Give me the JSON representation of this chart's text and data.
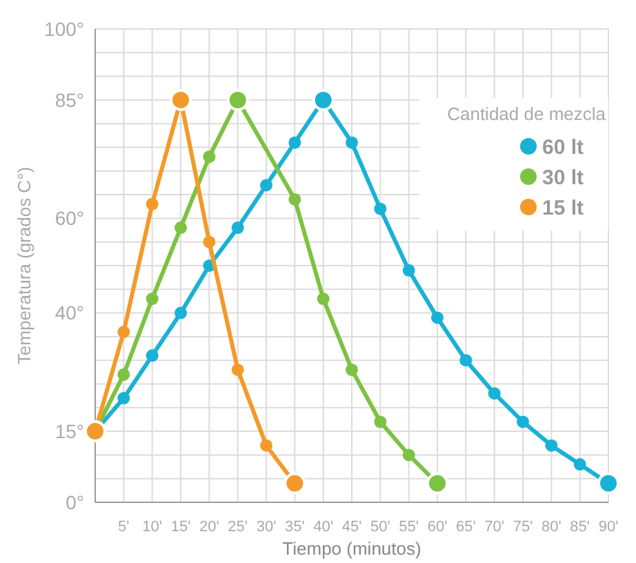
{
  "chart_data": {
    "type": "line",
    "xlabel": "Tiempo (minutos)",
    "ylabel": "Temperatura (grados C°)",
    "legend_title": "Cantidad de mezcla",
    "legend": "top right",
    "grid": true,
    "marker": "circle",
    "line_style": "solid",
    "xlim": [
      0,
      90
    ],
    "ylim": [
      0,
      100
    ],
    "xticks": [
      {
        "value": 0,
        "label": null
      },
      {
        "value": 5,
        "label": "5'"
      },
      {
        "value": 10,
        "label": "10'"
      },
      {
        "value": 15,
        "label": "15'"
      },
      {
        "value": 20,
        "label": "20'"
      },
      {
        "value": 25,
        "label": "25'"
      },
      {
        "value": 30,
        "label": "30'"
      },
      {
        "value": 35,
        "label": "35'"
      },
      {
        "value": 40,
        "label": "40'"
      },
      {
        "value": 45,
        "label": "45'"
      },
      {
        "value": 50,
        "label": "50'"
      },
      {
        "value": 55,
        "label": "55'"
      },
      {
        "value": 60,
        "label": "60'"
      },
      {
        "value": 65,
        "label": "65'"
      },
      {
        "value": 70,
        "label": "70'"
      },
      {
        "value": 75,
        "label": "75'"
      },
      {
        "value": 80,
        "label": "80'"
      },
      {
        "value": 85,
        "label": "85'"
      },
      {
        "value": 90,
        "label": "90'"
      }
    ],
    "yticks": [
      {
        "value": 0,
        "label": "0°"
      },
      {
        "value": 5,
        "label": null
      },
      {
        "value": 10,
        "label": null
      },
      {
        "value": 15,
        "label": "15°"
      },
      {
        "value": 20,
        "label": null
      },
      {
        "value": 25,
        "label": null
      },
      {
        "value": 30,
        "label": null
      },
      {
        "value": 35,
        "label": null
      },
      {
        "value": 40,
        "label": "40°"
      },
      {
        "value": 45,
        "label": null
      },
      {
        "value": 50,
        "label": null
      },
      {
        "value": 55,
        "label": null
      },
      {
        "value": 60,
        "label": "60°"
      },
      {
        "value": 65,
        "label": null
      },
      {
        "value": 70,
        "label": null
      },
      {
        "value": 75,
        "label": null
      },
      {
        "value": 80,
        "label": null
      },
      {
        "value": 85,
        "label": "85°"
      },
      {
        "value": 90,
        "label": null
      },
      {
        "value": 95,
        "label": null
      },
      {
        "value": 100,
        "label": "100°"
      }
    ],
    "series": [
      {
        "name": "60 lt",
        "color": "#1ab1d6",
        "x": [
          0,
          5,
          10,
          15,
          20,
          25,
          30,
          35,
          40,
          45,
          50,
          55,
          60,
          65,
          70,
          75,
          80,
          85,
          90
        ],
        "values": [
          15,
          22,
          31,
          40,
          50,
          58,
          67,
          76,
          85,
          76,
          62,
          49,
          39,
          30,
          23,
          17,
          12,
          8,
          4
        ]
      },
      {
        "name": "30 lt",
        "color": "#7dc242",
        "x": [
          0,
          5,
          10,
          15,
          20,
          25,
          35,
          40,
          45,
          50,
          55,
          60
        ],
        "values": [
          15,
          27,
          43,
          58,
          73,
          85,
          64,
          43,
          28,
          17,
          10,
          4
        ]
      },
      {
        "name": "15 lt",
        "color": "#f39a2a",
        "x": [
          0,
          5,
          10,
          15,
          20,
          25,
          30,
          35
        ],
        "values": [
          15,
          36,
          63,
          85,
          55,
          28,
          12,
          4
        ]
      }
    ]
  }
}
